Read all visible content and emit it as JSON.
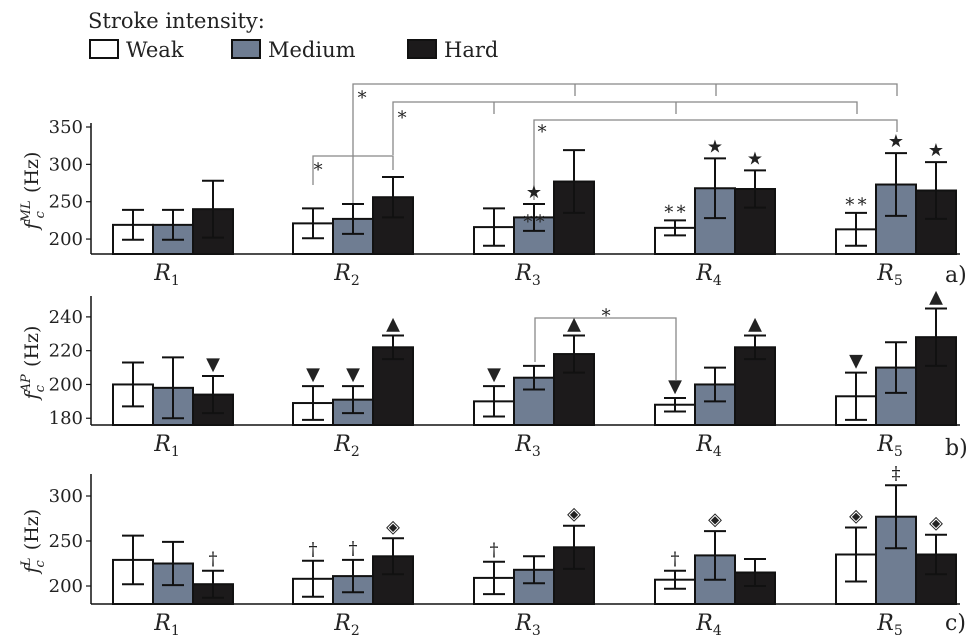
{
  "legend": {
    "title": "Stroke intensity:",
    "items": [
      {
        "label": "Weak",
        "color": "#ffffff"
      },
      {
        "label": "Medium",
        "color": "#6f7d92"
      },
      {
        "label": "Hard",
        "color": "#1c1a1b"
      }
    ]
  },
  "chart_data": [
    {
      "type": "bar",
      "panel": "a)",
      "ylabel_main": "f",
      "ylabel_sub": "c",
      "ylabel_sup": "ML",
      "ylabel_unit": "(Hz)",
      "ylim": [
        180,
        350
      ],
      "yticks": [
        200,
        250,
        300,
        350
      ],
      "categories": [
        {
          "main": "R",
          "sub": "1"
        },
        {
          "main": "R",
          "sub": "2"
        },
        {
          "main": "R",
          "sub": "3"
        },
        {
          "main": "R",
          "sub": "4"
        },
        {
          "main": "R",
          "sub": "5"
        }
      ],
      "series": [
        {
          "values": [
            219,
            221,
            216,
            215,
            213
          ],
          "errors": [
            20,
            20,
            25,
            10,
            22
          ]
        },
        {
          "values": [
            219,
            227,
            229,
            268,
            273
          ],
          "errors": [
            20,
            20,
            18,
            40,
            42
          ]
        },
        {
          "values": [
            240,
            256,
            277,
            267,
            265
          ],
          "errors": [
            38,
            27,
            42,
            25,
            38
          ]
        }
      ],
      "markers": [
        {
          "cat": 2,
          "series": 1,
          "symbol": "★"
        },
        {
          "cat": 2,
          "series": 1,
          "symbol": "∗∗",
          "below": true
        },
        {
          "cat": 3,
          "series": 0,
          "symbol": "∗∗"
        },
        {
          "cat": 3,
          "series": 1,
          "symbol": "★"
        },
        {
          "cat": 3,
          "series": 2,
          "symbol": "★"
        },
        {
          "cat": 4,
          "series": 0,
          "symbol": "∗∗"
        },
        {
          "cat": 4,
          "series": 1,
          "symbol": "★"
        },
        {
          "cat": 4,
          "series": 2,
          "symbol": "★"
        }
      ],
      "brackets_symbol": "∗"
    },
    {
      "type": "bar",
      "panel": "b)",
      "ylabel_main": "f",
      "ylabel_sub": "c",
      "ylabel_sup": "AP",
      "ylabel_unit": "(Hz)",
      "ylim": [
        176,
        250
      ],
      "yticks": [
        180,
        200,
        220,
        240
      ],
      "categories": [
        {
          "main": "R",
          "sub": "1"
        },
        {
          "main": "R",
          "sub": "2"
        },
        {
          "main": "R",
          "sub": "3"
        },
        {
          "main": "R",
          "sub": "4"
        },
        {
          "main": "R",
          "sub": "5"
        }
      ],
      "series": [
        {
          "values": [
            200,
            189,
            190,
            188,
            193
          ],
          "errors": [
            13,
            10,
            9,
            4,
            14
          ]
        },
        {
          "values": [
            198,
            191,
            204,
            200,
            210
          ],
          "errors": [
            18,
            8,
            7,
            10,
            15
          ]
        },
        {
          "values": [
            194,
            222,
            218,
            222,
            228
          ],
          "errors": [
            11,
            7,
            11,
            7,
            17
          ]
        }
      ],
      "markers": [
        {
          "cat": 0,
          "series": 2,
          "symbol": "▼"
        },
        {
          "cat": 1,
          "series": 0,
          "symbol": "▼"
        },
        {
          "cat": 1,
          "series": 1,
          "symbol": "▼"
        },
        {
          "cat": 1,
          "series": 2,
          "symbol": "▲"
        },
        {
          "cat": 2,
          "series": 0,
          "symbol": "▼"
        },
        {
          "cat": 2,
          "series": 2,
          "symbol": "▲"
        },
        {
          "cat": 3,
          "series": 0,
          "symbol": "▼"
        },
        {
          "cat": 3,
          "series": 2,
          "symbol": "▲"
        },
        {
          "cat": 4,
          "series": 0,
          "symbol": "▼"
        },
        {
          "cat": 4,
          "series": 2,
          "symbol": "▲"
        }
      ],
      "brackets_symbol": "∗"
    },
    {
      "type": "bar",
      "panel": "c)",
      "ylabel_main": "f",
      "ylabel_sub": "c",
      "ylabel_sup": "L",
      "ylabel_unit": "(Hz)",
      "ylim": [
        180,
        320
      ],
      "yticks": [
        200,
        250,
        300
      ],
      "categories": [
        {
          "main": "R",
          "sub": "1"
        },
        {
          "main": "R",
          "sub": "2"
        },
        {
          "main": "R",
          "sub": "3"
        },
        {
          "main": "R",
          "sub": "4"
        },
        {
          "main": "R",
          "sub": "5"
        }
      ],
      "series": [
        {
          "values": [
            229,
            208,
            209,
            207,
            235
          ],
          "errors": [
            27,
            20,
            18,
            10,
            30
          ]
        },
        {
          "values": [
            225,
            211,
            218,
            234,
            277
          ],
          "errors": [
            24,
            18,
            15,
            27,
            35
          ]
        },
        {
          "values": [
            202,
            233,
            243,
            215,
            235
          ],
          "errors": [
            15,
            20,
            24,
            15,
            22
          ]
        }
      ],
      "markers": [
        {
          "cat": 0,
          "series": 2,
          "symbol": "†"
        },
        {
          "cat": 1,
          "series": 0,
          "symbol": "†"
        },
        {
          "cat": 1,
          "series": 1,
          "symbol": "†"
        },
        {
          "cat": 1,
          "series": 2,
          "symbol": "◈"
        },
        {
          "cat": 2,
          "series": 0,
          "symbol": "†"
        },
        {
          "cat": 2,
          "series": 2,
          "symbol": "◈"
        },
        {
          "cat": 3,
          "series": 0,
          "symbol": "†"
        },
        {
          "cat": 3,
          "series": 1,
          "symbol": "◈"
        },
        {
          "cat": 4,
          "series": 0,
          "symbol": "◈"
        },
        {
          "cat": 4,
          "series": 1,
          "symbol": "‡"
        },
        {
          "cat": 4,
          "series": 2,
          "symbol": "◈"
        }
      ]
    }
  ]
}
